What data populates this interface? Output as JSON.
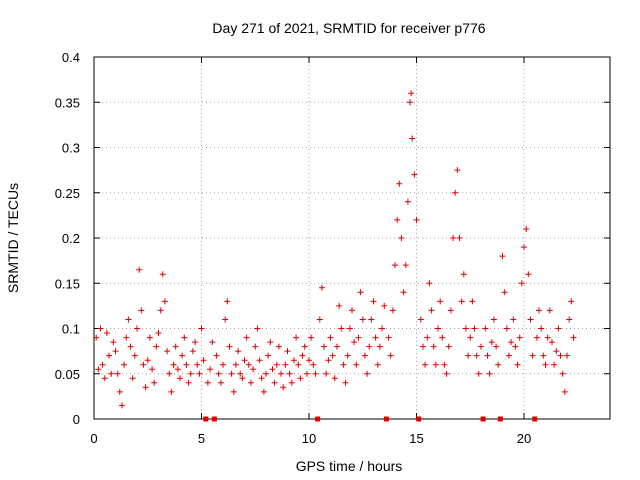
{
  "chart_data": {
    "type": "scatter",
    "title": "Day 271 of 2021, SRMTID for receiver p776",
    "xlabel": "GPS time / hours",
    "ylabel": "SRMTID / TECUs",
    "xlim": [
      0,
      24
    ],
    "ylim": [
      0,
      0.4
    ],
    "x_ticks": [
      0,
      5,
      10,
      15,
      20
    ],
    "x_tick_labels": [
      "0",
      "5",
      "10",
      "15",
      "20"
    ],
    "y_ticks": [
      0,
      0.05,
      0.1,
      0.15,
      0.2,
      0.25,
      0.3,
      0.35,
      0.4
    ],
    "y_tick_labels": [
      "0",
      "0.05",
      "0.1",
      "0.15",
      "0.2",
      "0.25",
      "0.3",
      "0.35",
      "0.4"
    ],
    "grid": true,
    "marker": "plus",
    "color": "#e00000",
    "data_coverage_hours": [
      0,
      22.3
    ],
    "zero_markers_x": [
      5.2,
      5.6,
      10.4,
      13.6,
      15.1,
      18.1,
      18.9,
      20.5
    ],
    "series": [
      {
        "name": "SRMTID",
        "points": [
          [
            0.1,
            0.09
          ],
          [
            0.2,
            0.055
          ],
          [
            0.3,
            0.1
          ],
          [
            0.4,
            0.06
          ],
          [
            0.5,
            0.045
          ],
          [
            0.6,
            0.095
          ],
          [
            0.7,
            0.07
          ],
          [
            0.8,
            0.05
          ],
          [
            0.9,
            0.085
          ],
          [
            1.0,
            0.075
          ],
          [
            1.1,
            0.05
          ],
          [
            1.2,
            0.03
          ],
          [
            1.3,
            0.015
          ],
          [
            1.4,
            0.06
          ],
          [
            1.5,
            0.09
          ],
          [
            1.6,
            0.11
          ],
          [
            1.7,
            0.08
          ],
          [
            1.8,
            0.045
          ],
          [
            1.9,
            0.07
          ],
          [
            2.0,
            0.1
          ],
          [
            2.1,
            0.165
          ],
          [
            2.2,
            0.12
          ],
          [
            2.3,
            0.06
          ],
          [
            2.4,
            0.035
          ],
          [
            2.5,
            0.065
          ],
          [
            2.6,
            0.09
          ],
          [
            2.7,
            0.055
          ],
          [
            2.8,
            0.04
          ],
          [
            2.9,
            0.08
          ],
          [
            3.0,
            0.095
          ],
          [
            3.1,
            0.12
          ],
          [
            3.2,
            0.16
          ],
          [
            3.3,
            0.13
          ],
          [
            3.4,
            0.075
          ],
          [
            3.5,
            0.05
          ],
          [
            3.6,
            0.03
          ],
          [
            3.7,
            0.06
          ],
          [
            3.8,
            0.08
          ],
          [
            3.9,
            0.055
          ],
          [
            4.0,
            0.045
          ],
          [
            4.1,
            0.07
          ],
          [
            4.2,
            0.09
          ],
          [
            4.3,
            0.06
          ],
          [
            4.4,
            0.04
          ],
          [
            4.5,
            0.05
          ],
          [
            4.6,
            0.075
          ],
          [
            4.7,
            0.085
          ],
          [
            4.8,
            0.06
          ],
          [
            4.9,
            0.05
          ],
          [
            5.0,
            0.1
          ],
          [
            5.1,
            0.065
          ],
          [
            5.3,
            0.04
          ],
          [
            5.4,
            0.055
          ],
          [
            5.5,
            0.085
          ],
          [
            5.7,
            0.07
          ],
          [
            5.8,
            0.05
          ],
          [
            5.9,
            0.04
          ],
          [
            6.0,
            0.06
          ],
          [
            6.1,
            0.11
          ],
          [
            6.2,
            0.13
          ],
          [
            6.3,
            0.08
          ],
          [
            6.4,
            0.05
          ],
          [
            6.5,
            0.03
          ],
          [
            6.6,
            0.06
          ],
          [
            6.7,
            0.075
          ],
          [
            6.8,
            0.05
          ],
          [
            6.9,
            0.045
          ],
          [
            7.0,
            0.065
          ],
          [
            7.1,
            0.09
          ],
          [
            7.2,
            0.06
          ],
          [
            7.3,
            0.04
          ],
          [
            7.4,
            0.055
          ],
          [
            7.5,
            0.08
          ],
          [
            7.6,
            0.1
          ],
          [
            7.7,
            0.065
          ],
          [
            7.8,
            0.045
          ],
          [
            7.9,
            0.03
          ],
          [
            8.0,
            0.05
          ],
          [
            8.1,
            0.07
          ],
          [
            8.2,
            0.085
          ],
          [
            8.3,
            0.055
          ],
          [
            8.4,
            0.04
          ],
          [
            8.5,
            0.06
          ],
          [
            8.6,
            0.08
          ],
          [
            8.7,
            0.05
          ],
          [
            8.8,
            0.035
          ],
          [
            8.9,
            0.06
          ],
          [
            9.0,
            0.075
          ],
          [
            9.1,
            0.05
          ],
          [
            9.2,
            0.04
          ],
          [
            9.3,
            0.065
          ],
          [
            9.4,
            0.09
          ],
          [
            9.5,
            0.06
          ],
          [
            9.6,
            0.045
          ],
          [
            9.7,
            0.07
          ],
          [
            9.8,
            0.08
          ],
          [
            9.9,
            0.05
          ],
          [
            10.0,
            0.065
          ],
          [
            10.1,
            0.09
          ],
          [
            10.2,
            0.06
          ],
          [
            10.3,
            0.05
          ],
          [
            10.5,
            0.11
          ],
          [
            10.6,
            0.145
          ],
          [
            10.7,
            0.08
          ],
          [
            10.8,
            0.05
          ],
          [
            10.9,
            0.065
          ],
          [
            11.0,
            0.09
          ],
          [
            11.1,
            0.07
          ],
          [
            11.2,
            0.045
          ],
          [
            11.3,
            0.08
          ],
          [
            11.4,
            0.125
          ],
          [
            11.5,
            0.1
          ],
          [
            11.6,
            0.06
          ],
          [
            11.7,
            0.04
          ],
          [
            11.8,
            0.07
          ],
          [
            11.9,
            0.1
          ],
          [
            12.0,
            0.12
          ],
          [
            12.1,
            0.085
          ],
          [
            12.2,
            0.06
          ],
          [
            12.3,
            0.09
          ],
          [
            12.4,
            0.14
          ],
          [
            12.5,
            0.11
          ],
          [
            12.6,
            0.07
          ],
          [
            12.7,
            0.05
          ],
          [
            12.8,
            0.08
          ],
          [
            12.9,
            0.11
          ],
          [
            13.0,
            0.13
          ],
          [
            13.1,
            0.09
          ],
          [
            13.2,
            0.06
          ],
          [
            13.3,
            0.08
          ],
          [
            13.4,
            0.1
          ],
          [
            13.5,
            0.125
          ],
          [
            13.7,
            0.09
          ],
          [
            13.8,
            0.07
          ],
          [
            13.9,
            0.12
          ],
          [
            14.0,
            0.17
          ],
          [
            14.1,
            0.22
          ],
          [
            14.2,
            0.26
          ],
          [
            14.3,
            0.2
          ],
          [
            14.4,
            0.14
          ],
          [
            14.5,
            0.17
          ],
          [
            14.6,
            0.24
          ],
          [
            14.7,
            0.35
          ],
          [
            14.75,
            0.36
          ],
          [
            14.8,
            0.31
          ],
          [
            14.9,
            0.27
          ],
          [
            15.0,
            0.22
          ],
          [
            15.2,
            0.11
          ],
          [
            15.3,
            0.08
          ],
          [
            15.4,
            0.06
          ],
          [
            15.5,
            0.09
          ],
          [
            15.6,
            0.15
          ],
          [
            15.7,
            0.12
          ],
          [
            15.8,
            0.08
          ],
          [
            15.9,
            0.06
          ],
          [
            16.0,
            0.1
          ],
          [
            16.1,
            0.13
          ],
          [
            16.2,
            0.09
          ],
          [
            16.3,
            0.06
          ],
          [
            16.4,
            0.05
          ],
          [
            16.5,
            0.08
          ],
          [
            16.6,
            0.12
          ],
          [
            16.7,
            0.2
          ],
          [
            16.8,
            0.25
          ],
          [
            16.9,
            0.275
          ],
          [
            17.0,
            0.2
          ],
          [
            17.1,
            0.13
          ],
          [
            17.2,
            0.16
          ],
          [
            17.3,
            0.1
          ],
          [
            17.4,
            0.07
          ],
          [
            17.5,
            0.09
          ],
          [
            17.6,
            0.13
          ],
          [
            17.7,
            0.1
          ],
          [
            17.8,
            0.07
          ],
          [
            17.9,
            0.05
          ],
          [
            18.0,
            0.08
          ],
          [
            18.2,
            0.1
          ],
          [
            18.3,
            0.07
          ],
          [
            18.4,
            0.05
          ],
          [
            18.5,
            0.085
          ],
          [
            18.6,
            0.11
          ],
          [
            18.7,
            0.08
          ],
          [
            18.8,
            0.06
          ],
          [
            19.0,
            0.18
          ],
          [
            19.1,
            0.14
          ],
          [
            19.2,
            0.1
          ],
          [
            19.3,
            0.07
          ],
          [
            19.4,
            0.085
          ],
          [
            19.5,
            0.11
          ],
          [
            19.6,
            0.08
          ],
          [
            19.7,
            0.06
          ],
          [
            19.8,
            0.09
          ],
          [
            19.9,
            0.15
          ],
          [
            20.0,
            0.19
          ],
          [
            20.1,
            0.21
          ],
          [
            20.2,
            0.16
          ],
          [
            20.3,
            0.11
          ],
          [
            20.4,
            0.07
          ],
          [
            20.6,
            0.09
          ],
          [
            20.7,
            0.12
          ],
          [
            20.8,
            0.1
          ],
          [
            20.9,
            0.07
          ],
          [
            21.0,
            0.06
          ],
          [
            21.1,
            0.09
          ],
          [
            21.2,
            0.12
          ],
          [
            21.3,
            0.085
          ],
          [
            21.4,
            0.06
          ],
          [
            21.5,
            0.075
          ],
          [
            21.6,
            0.1
          ],
          [
            21.7,
            0.07
          ],
          [
            21.8,
            0.05
          ],
          [
            21.9,
            0.03
          ],
          [
            22.0,
            0.07
          ],
          [
            22.1,
            0.11
          ],
          [
            22.2,
            0.13
          ],
          [
            22.3,
            0.09
          ]
        ]
      }
    ]
  }
}
